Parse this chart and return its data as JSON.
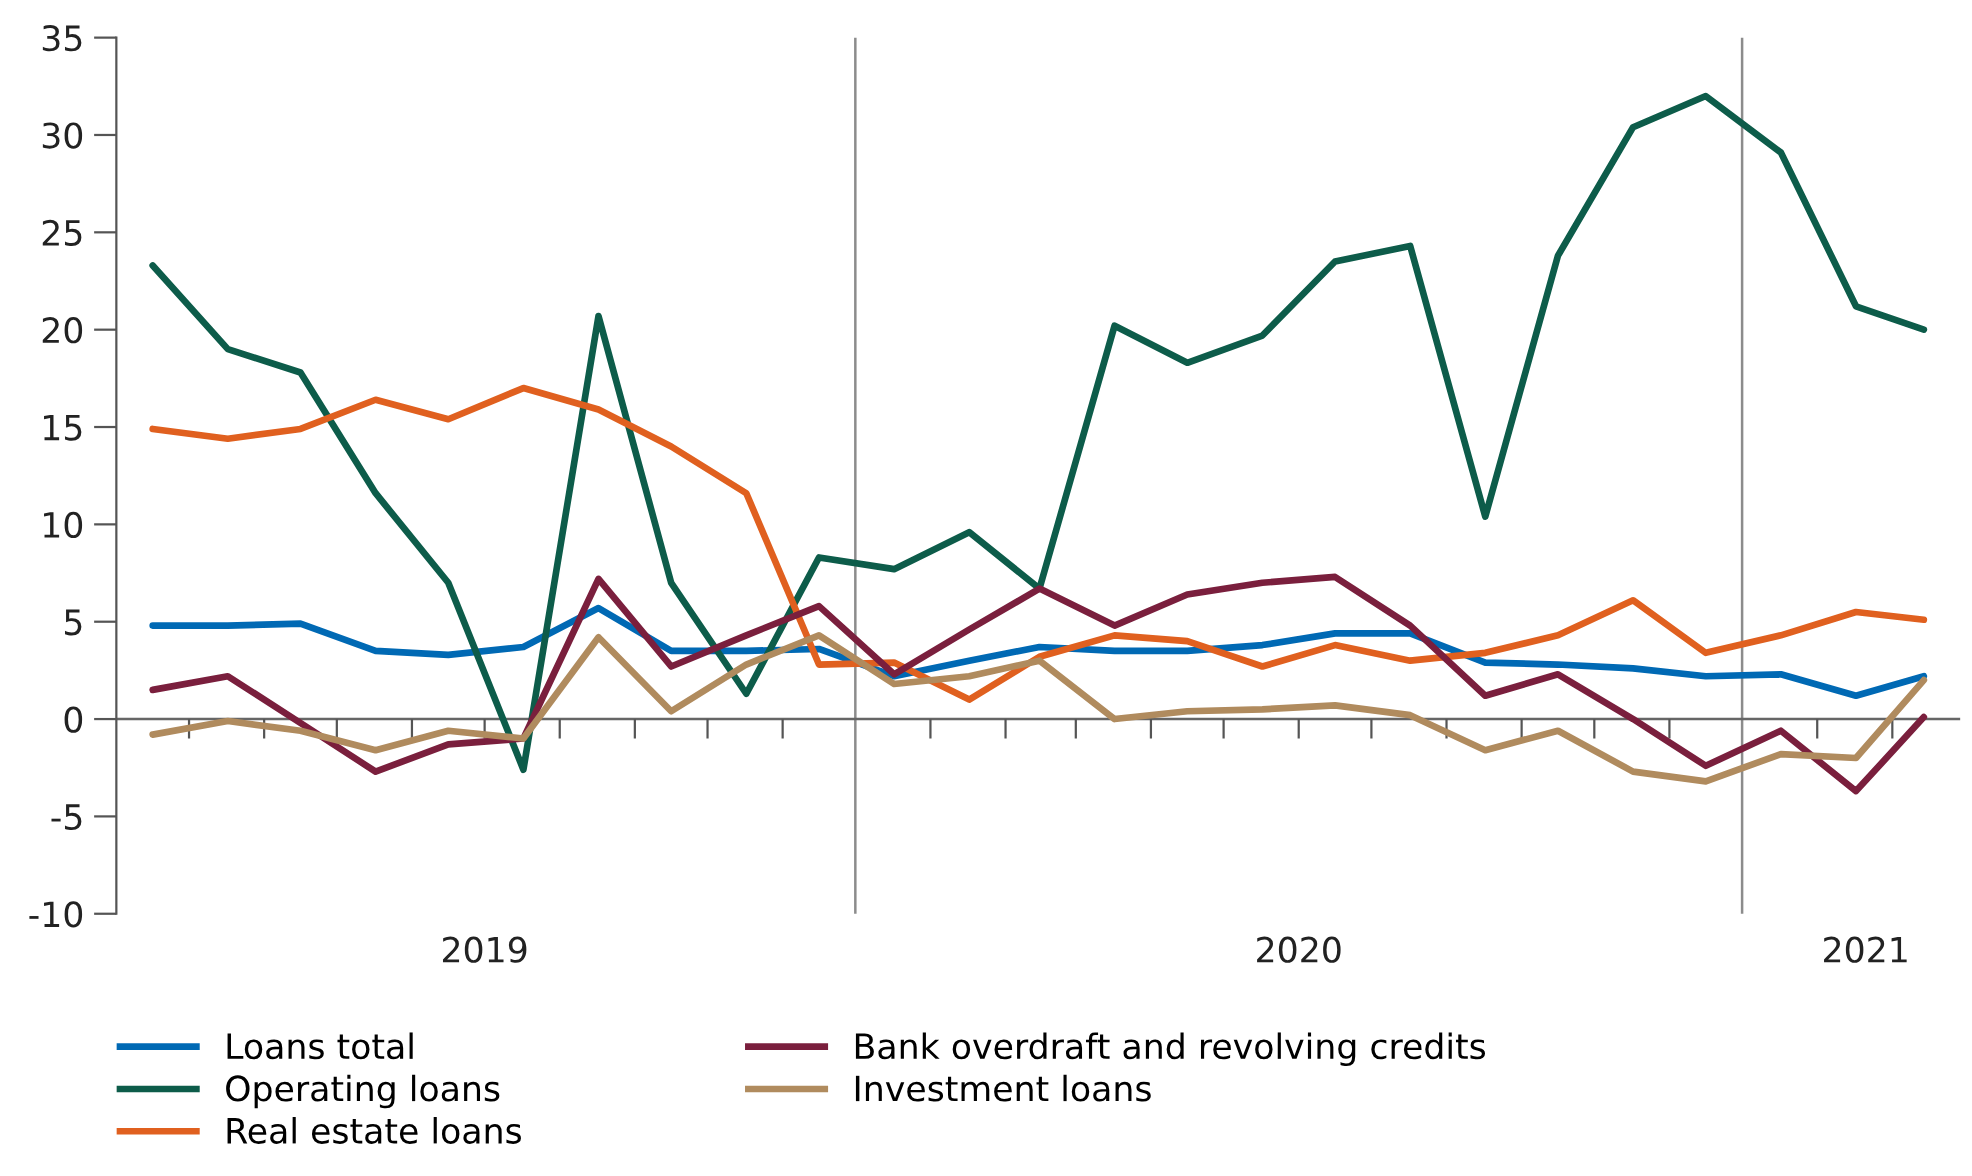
{
  "chart_data": {
    "type": "line",
    "x": [
      "2019-03-01",
      "2019-04-01",
      "2019-05-01",
      "2019-06-01",
      "2019-07-01",
      "2019-08-01",
      "2019-09-01",
      "2019-10-01",
      "2019-11-01",
      "2019-12-01",
      "2020-01-01",
      "2020-02-01",
      "2020-03-01",
      "2020-04-01",
      "2020-05-01",
      "2020-06-01",
      "2020-07-01",
      "2020-08-01",
      "2020-09-01",
      "2020-10-01",
      "2020-11-01",
      "2020-12-01",
      "2021-01-01",
      "2021-02-01",
      "2021-03-01"
    ],
    "series": [
      {
        "name": "Loans total",
        "color": "#0069b4",
        "values": [
          4.8,
          4.8,
          4.9,
          3.5,
          3.3,
          3.7,
          5.7,
          3.5,
          3.5,
          3.6,
          2.2,
          3.0,
          3.7,
          3.5,
          3.5,
          3.8,
          4.4,
          4.4,
          2.9,
          2.8,
          2.6,
          2.2,
          2.3,
          1.2,
          2.2
        ]
      },
      {
        "name": "Operating loans",
        "color": "#0d5c4a",
        "values": [
          23.3,
          19.0,
          17.8,
          11.6,
          7.0,
          -2.6,
          20.7,
          7.0,
          1.3,
          8.3,
          7.7,
          9.6,
          6.7,
          20.2,
          18.3,
          19.7,
          23.5,
          24.3,
          10.4,
          23.8,
          30.4,
          32.0,
          29.1,
          21.2,
          20.0
        ]
      },
      {
        "name": "Real estate loans",
        "color": "#e0601f",
        "values": [
          14.9,
          14.4,
          14.9,
          16.4,
          15.4,
          17.0,
          15.9,
          14.0,
          11.6,
          2.8,
          2.9,
          1.0,
          3.2,
          4.3,
          4.0,
          2.7,
          3.8,
          3.0,
          3.4,
          4.3,
          6.1,
          3.4,
          4.3,
          5.5,
          5.1
        ]
      },
      {
        "name": "Bank overdraft and revolving credits",
        "color": "#7a1f3d",
        "values": [
          1.5,
          2.2,
          -0.2,
          -2.7,
          -1.3,
          -1.0,
          7.2,
          2.7,
          4.3,
          5.8,
          2.3,
          4.6,
          6.7,
          4.8,
          6.4,
          7.0,
          7.3,
          4.8,
          1.2,
          2.3,
          0.0,
          -2.4,
          -0.6,
          -3.7,
          0.1
        ]
      },
      {
        "name": "Investment loans",
        "color": "#b08b5e",
        "values": [
          -0.8,
          -0.1,
          -0.6,
          -1.6,
          -0.6,
          -1.0,
          4.2,
          0.4,
          2.8,
          4.3,
          1.8,
          2.2,
          3.0,
          0.0,
          0.4,
          0.5,
          0.7,
          0.2,
          -1.6,
          -0.6,
          -2.7,
          -3.2,
          -1.8,
          -2.0,
          2.0
        ]
      }
    ],
    "xlim": [
      "2019-02-14",
      "2021-03-16"
    ],
    "xticks": [
      {
        "value": "2019-03-16",
        "label": null
      },
      {
        "value": "2019-04-16",
        "label": null
      },
      {
        "value": "2019-05-16",
        "label": null
      },
      {
        "value": "2019-06-16",
        "label": null
      },
      {
        "value": "2019-07-16",
        "label": null
      },
      {
        "value": "2019-08-16",
        "label": null
      },
      {
        "value": "2019-09-16",
        "label": null
      },
      {
        "value": "2019-10-16",
        "label": null
      },
      {
        "value": "2019-11-16",
        "label": null
      },
      {
        "value": "2020-01-16",
        "label": null
      },
      {
        "value": "2020-02-16",
        "label": null
      },
      {
        "value": "2020-03-16",
        "label": null
      },
      {
        "value": "2020-04-16",
        "label": null
      },
      {
        "value": "2020-05-16",
        "label": null
      },
      {
        "value": "2020-06-16",
        "label": null
      },
      {
        "value": "2020-07-16",
        "label": null
      },
      {
        "value": "2020-08-16",
        "label": null
      },
      {
        "value": "2020-09-16",
        "label": null
      },
      {
        "value": "2020-10-16",
        "label": null
      },
      {
        "value": "2020-11-16",
        "label": null
      },
      {
        "value": "2021-01-16",
        "label": null
      },
      {
        "value": "2021-02-16",
        "label": null
      },
      {
        "value": "2019-07-16",
        "label": "2019"
      },
      {
        "value": "2020-06-16",
        "label": "2020"
      },
      {
        "value": "2021-02-05",
        "label": "2021"
      }
    ],
    "ylim": [
      -10,
      35
    ],
    "yticks": [
      -10,
      -5,
      0,
      5,
      10,
      15,
      20,
      25,
      30,
      35
    ],
    "ref_lines": [
      {
        "axis": "x",
        "value": "2019-12-16",
        "color": "#8c8c8c"
      },
      {
        "axis": "x",
        "value": "2020-12-16",
        "color": "#8c8c8c"
      },
      {
        "axis": "y",
        "value": 0,
        "color": "#666666"
      }
    ],
    "legend": "bottom",
    "marker": "none",
    "line_style": "solid"
  }
}
